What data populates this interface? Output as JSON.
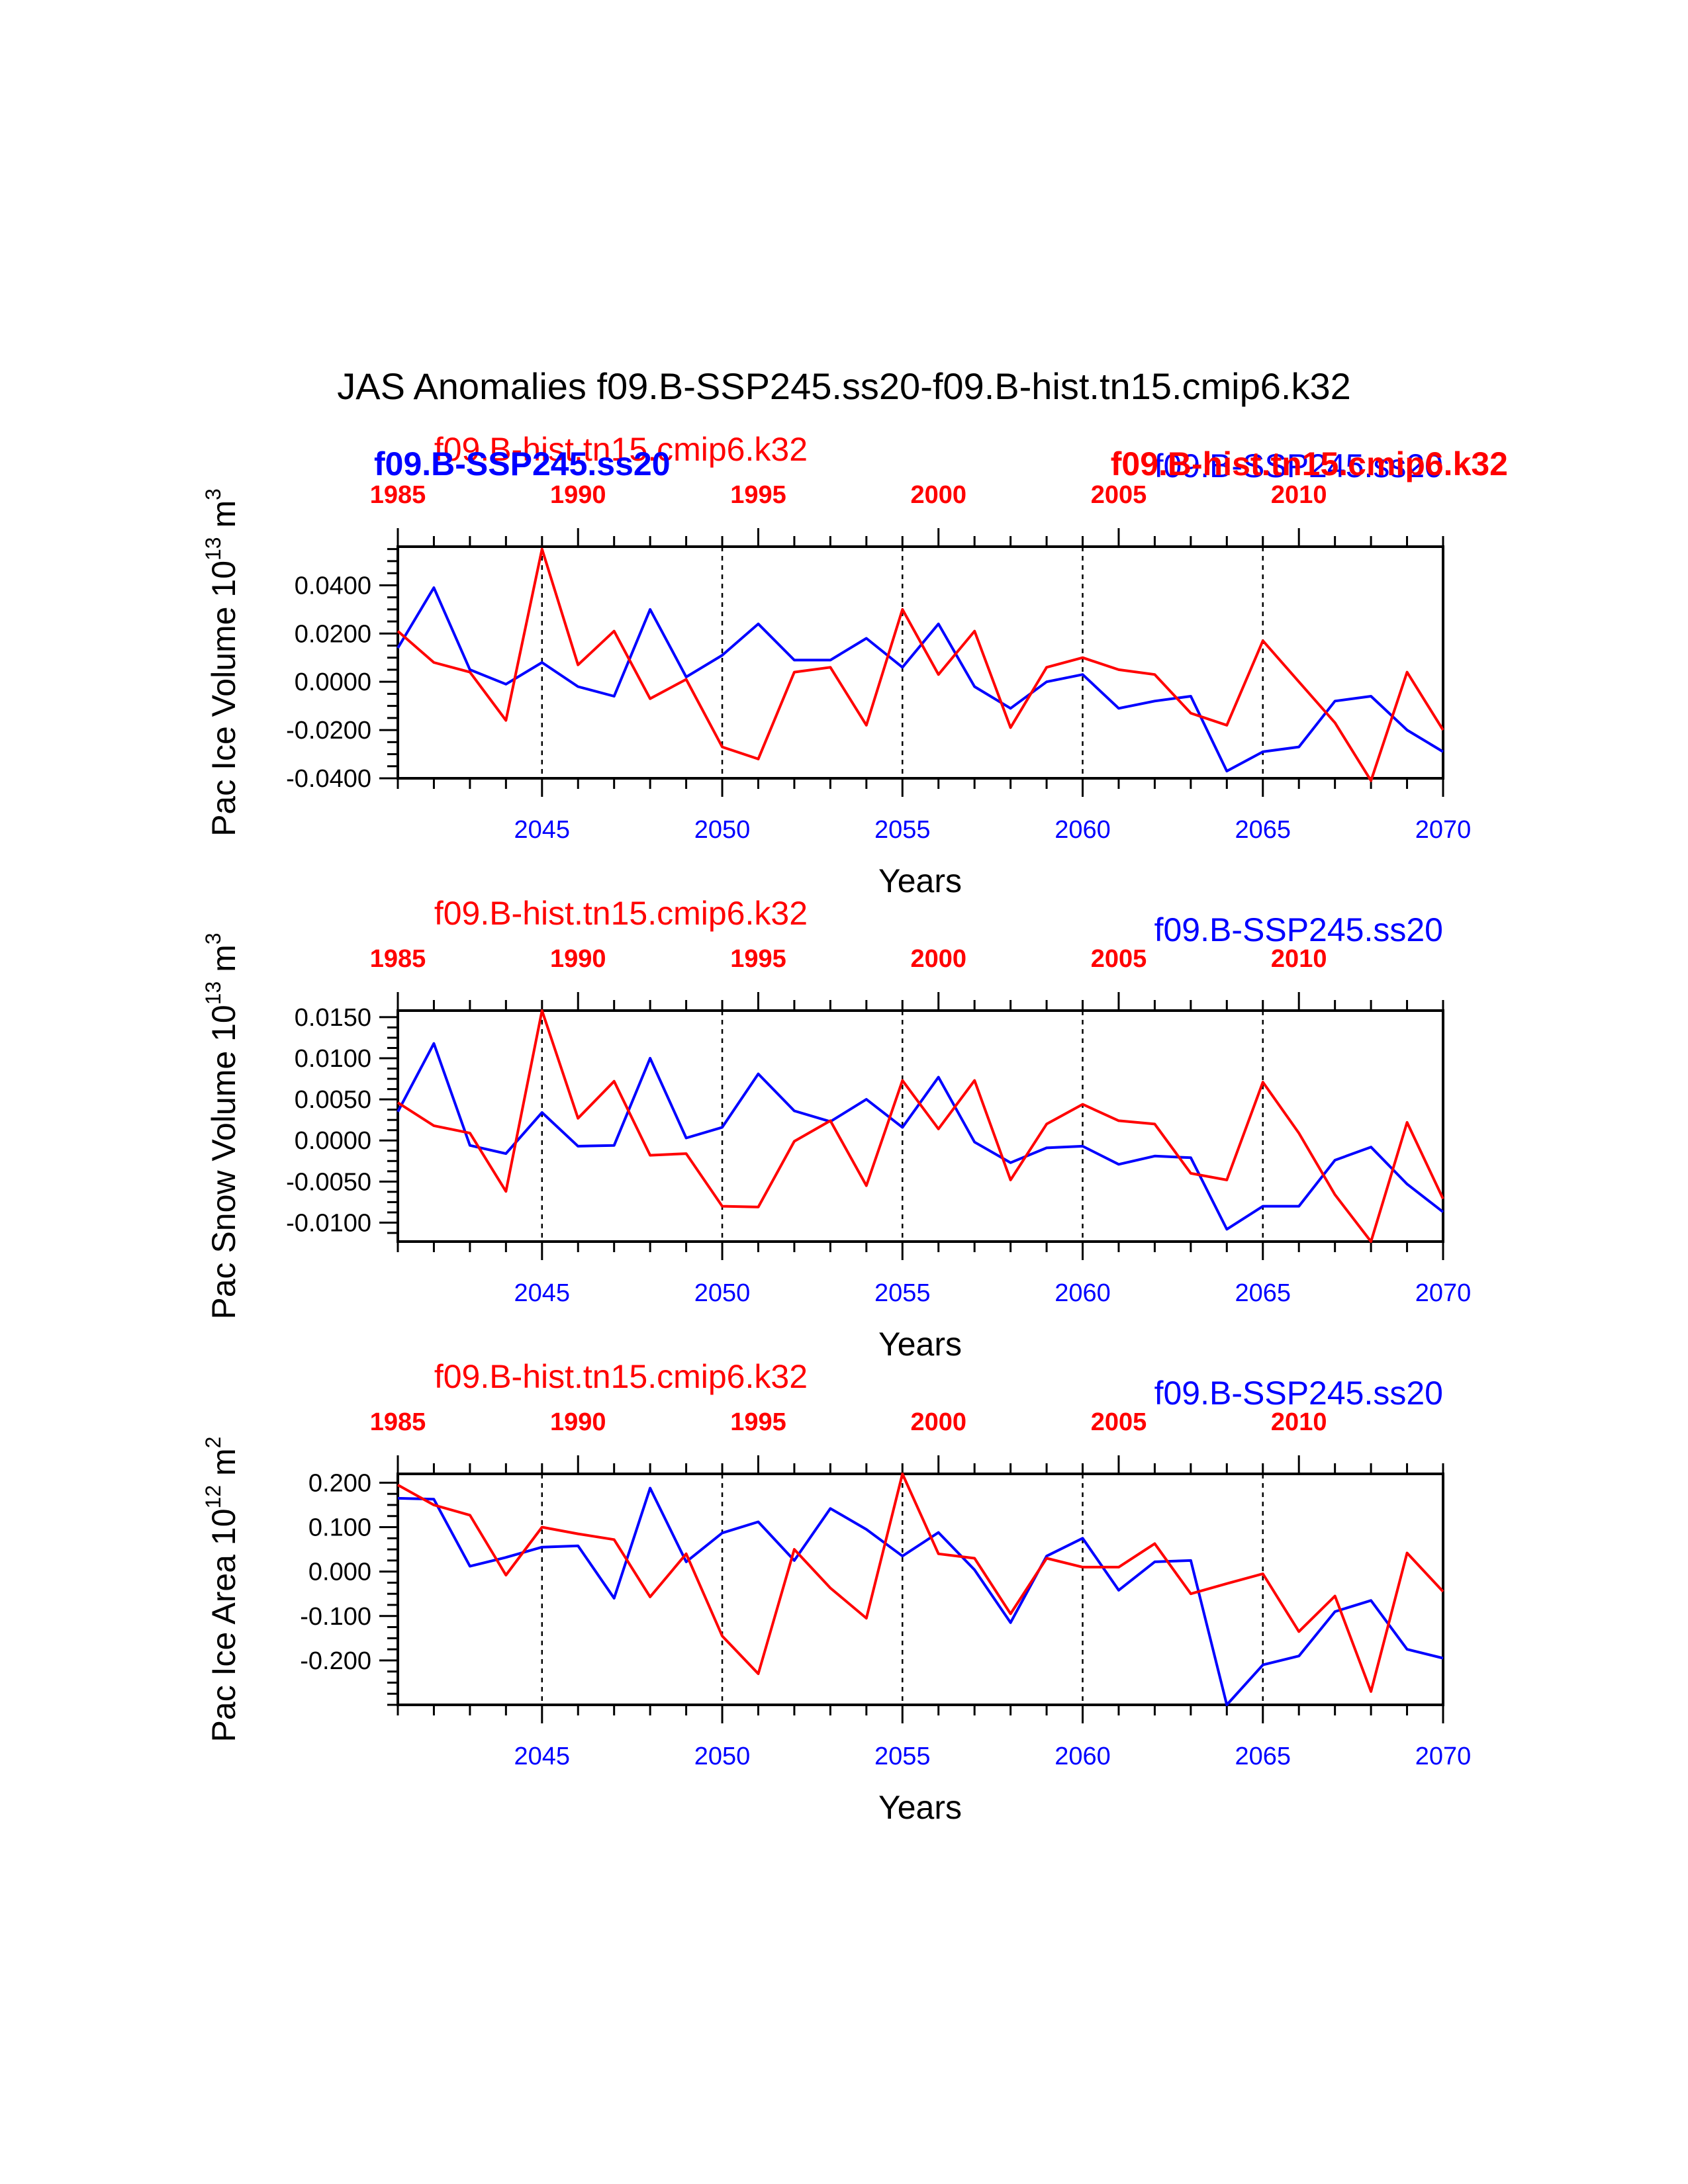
{
  "page": {
    "title": "JAS Anomalies f09.B-SSP245.ss20-f09.B-hist.tn15.cmip6.k32"
  },
  "colors": {
    "ssp": "#0000ff",
    "hist": "#ff0000",
    "axis": "#000000"
  },
  "chart_data": [
    {
      "type": "line",
      "ylabel": "Pac Ice Volume 10",
      "ylabel_sup": "13",
      "ylabel_unit": " m",
      "ylabel_unit_sup": "3",
      "xlabel": "Years",
      "top_label_hist": "f09.B-hist.tn15.cmip6.k32",
      "top_label_ssp": "f09.B-SSP245.ss20",
      "overlay_label_ssp": "f09.B-SSP245.ss20",
      "overlay_label_hist": "f09.B-hist.tn15.cmip6.k32",
      "ylim": [
        -0.04,
        0.056
      ],
      "yticks": [
        -0.04,
        -0.02,
        0.0,
        0.02,
        0.04
      ],
      "ytick_labels": [
        "-0.0400",
        "-0.0200",
        "0.0000",
        "0.0200",
        "0.0400"
      ],
      "yminor_step": 0.005,
      "xlim": [
        2041,
        2070
      ],
      "xticks_bottom": [
        2045,
        2050,
        2055,
        2060,
        2065,
        2070
      ],
      "xticks_top": [
        1985,
        1990,
        1995,
        2000,
        2005,
        2010
      ],
      "top_year_offset": 56,
      "dashed_x": [
        2045,
        2050,
        2055,
        2060,
        2065
      ],
      "series": [
        {
          "name": "f09.B-SSP245.ss20",
          "color": "ssp",
          "x": [
            2041,
            2042,
            2043,
            2044,
            2045,
            2046,
            2047,
            2048,
            2049,
            2050,
            2051,
            2052,
            2053,
            2054,
            2055,
            2056,
            2057,
            2058,
            2059,
            2060,
            2061,
            2062,
            2063,
            2064,
            2065,
            2066,
            2067,
            2068,
            2069,
            2070
          ],
          "values": [
            0.014,
            0.039,
            0.005,
            -0.001,
            0.008,
            -0.002,
            -0.006,
            0.03,
            0.002,
            0.011,
            0.024,
            0.009,
            0.009,
            0.018,
            0.006,
            0.024,
            -0.002,
            -0.011,
            0.0,
            0.003,
            -0.011,
            -0.008,
            -0.006,
            -0.037,
            -0.029,
            -0.027,
            -0.008,
            -0.006,
            -0.02,
            -0.029
          ]
        },
        {
          "name": "f09.B-hist.tn15.cmip6.k32",
          "color": "hist",
          "x": [
            2041,
            2042,
            2043,
            2044,
            2045,
            2046,
            2047,
            2048,
            2049,
            2050,
            2051,
            2052,
            2053,
            2054,
            2055,
            2056,
            2057,
            2058,
            2059,
            2060,
            2061,
            2062,
            2063,
            2064,
            2065,
            2066,
            2067,
            2068,
            2069,
            2070
          ],
          "values": [
            0.021,
            0.008,
            0.004,
            -0.016,
            0.055,
            0.007,
            0.021,
            -0.007,
            0.001,
            -0.027,
            -0.032,
            0.004,
            0.006,
            -0.018,
            0.03,
            0.003,
            0.021,
            -0.019,
            0.006,
            0.01,
            0.005,
            0.003,
            -0.013,
            -0.018,
            0.017,
            0.0,
            -0.017,
            -0.041,
            0.004,
            -0.02
          ]
        }
      ]
    },
    {
      "type": "line",
      "ylabel": "Pac Snow Volume 10",
      "ylabel_sup": "13",
      "ylabel_unit": " m",
      "ylabel_unit_sup": "3",
      "xlabel": "Years",
      "top_label_hist": "f09.B-hist.tn15.cmip6.k32",
      "top_label_ssp": "f09.B-SSP245.ss20",
      "ylim": [
        -0.0123,
        0.0158
      ],
      "yticks": [
        -0.01,
        -0.005,
        0.0,
        0.005,
        0.01,
        0.015
      ],
      "ytick_labels": [
        "-0.0100",
        "-0.0050",
        "0.0000",
        "0.0050",
        "0.0100",
        "0.0150"
      ],
      "yminor_step": 0.00125,
      "xlim": [
        2041,
        2070
      ],
      "xticks_bottom": [
        2045,
        2050,
        2055,
        2060,
        2065,
        2070
      ],
      "xticks_top": [
        1985,
        1990,
        1995,
        2000,
        2005,
        2010
      ],
      "top_year_offset": 56,
      "dashed_x": [
        2045,
        2050,
        2055,
        2060,
        2065
      ],
      "series": [
        {
          "name": "f09.B-SSP245.ss20",
          "color": "ssp",
          "x": [
            2041,
            2042,
            2043,
            2044,
            2045,
            2046,
            2047,
            2048,
            2049,
            2050,
            2051,
            2052,
            2053,
            2054,
            2055,
            2056,
            2057,
            2058,
            2059,
            2060,
            2061,
            2062,
            2063,
            2064,
            2065,
            2066,
            2067,
            2068,
            2069,
            2070
          ],
          "values": [
            0.0035,
            0.0118,
            -0.0006,
            -0.0016,
            0.0034,
            -0.0007,
            -0.0006,
            0.01,
            0.0003,
            0.0016,
            0.0081,
            0.0036,
            0.0023,
            0.005,
            0.0016,
            0.0077,
            -0.0002,
            -0.0027,
            -0.0009,
            -0.0007,
            -0.0029,
            -0.0019,
            -0.0021,
            -0.0108,
            -0.008,
            -0.008,
            -0.0024,
            -0.0008,
            -0.0053,
            -0.0087
          ]
        },
        {
          "name": "f09.B-hist.tn15.cmip6.k32",
          "color": "hist",
          "x": [
            2041,
            2042,
            2043,
            2044,
            2045,
            2046,
            2047,
            2048,
            2049,
            2050,
            2051,
            2052,
            2053,
            2054,
            2055,
            2056,
            2057,
            2058,
            2059,
            2060,
            2061,
            2062,
            2063,
            2064,
            2065,
            2066,
            2067,
            2068,
            2069,
            2070
          ],
          "values": [
            0.0046,
            0.0018,
            0.0009,
            -0.0062,
            0.0158,
            0.0027,
            0.0072,
            -0.0018,
            -0.0016,
            -0.008,
            -0.0081,
            -0.0001,
            0.0024,
            -0.0055,
            0.0073,
            0.0014,
            0.0073,
            -0.0048,
            0.002,
            0.0044,
            0.0024,
            0.002,
            -0.004,
            -0.0048,
            0.0071,
            0.0009,
            -0.0066,
            -0.0123,
            0.0022,
            -0.0071
          ]
        }
      ]
    },
    {
      "type": "line",
      "ylabel": "Pac Ice Area 10",
      "ylabel_sup": "12",
      "ylabel_unit": " m",
      "ylabel_unit_sup": "2",
      "xlabel": "Years",
      "top_label_hist": "f09.B-hist.tn15.cmip6.k32",
      "top_label_ssp": "f09.B-SSP245.ss20",
      "ylim": [
        -0.3,
        0.22
      ],
      "yticks": [
        -0.2,
        -0.1,
        0.0,
        0.1,
        0.2
      ],
      "ytick_labels": [
        "-0.200",
        "-0.100",
        "0.000",
        "0.100",
        "0.200"
      ],
      "yminor_step": 0.025,
      "xlim": [
        2041,
        2070
      ],
      "xticks_bottom": [
        2045,
        2050,
        2055,
        2060,
        2065,
        2070
      ],
      "xticks_top": [
        1985,
        1990,
        1995,
        2000,
        2005,
        2010
      ],
      "top_year_offset": 56,
      "dashed_x": [
        2045,
        2050,
        2055,
        2060,
        2065
      ],
      "series": [
        {
          "name": "f09.B-SSP245.ss20",
          "color": "ssp",
          "x": [
            2041,
            2042,
            2043,
            2044,
            2045,
            2046,
            2047,
            2048,
            2049,
            2050,
            2051,
            2052,
            2053,
            2054,
            2055,
            2056,
            2057,
            2058,
            2059,
            2060,
            2061,
            2062,
            2063,
            2064,
            2065,
            2066,
            2067,
            2068,
            2069,
            2070
          ],
          "values": [
            0.165,
            0.163,
            0.012,
            0.032,
            0.055,
            0.058,
            -0.06,
            0.188,
            0.022,
            0.087,
            0.112,
            0.025,
            0.142,
            0.095,
            0.035,
            0.088,
            0.004,
            -0.115,
            0.035,
            0.075,
            -0.042,
            0.022,
            0.025,
            -0.3,
            -0.21,
            -0.19,
            -0.09,
            -0.065,
            -0.175,
            -0.195
          ]
        },
        {
          "name": "f09.B-hist.tn15.cmip6.k32",
          "color": "hist",
          "x": [
            2041,
            2042,
            2043,
            2044,
            2045,
            2046,
            2047,
            2048,
            2049,
            2050,
            2051,
            2052,
            2053,
            2054,
            2055,
            2056,
            2057,
            2058,
            2059,
            2060,
            2061,
            2062,
            2063,
            2064,
            2065,
            2066,
            2067,
            2068,
            2069,
            2070
          ],
          "values": [
            0.195,
            0.15,
            0.127,
            -0.008,
            0.1,
            0.085,
            0.072,
            -0.057,
            0.04,
            -0.145,
            -0.23,
            0.05,
            -0.037,
            -0.105,
            0.22,
            0.04,
            0.03,
            -0.095,
            0.03,
            0.01,
            0.01,
            0.063,
            -0.05,
            -0.027,
            -0.005,
            -0.135,
            -0.055,
            -0.27,
            0.042,
            -0.045
          ]
        }
      ]
    }
  ]
}
